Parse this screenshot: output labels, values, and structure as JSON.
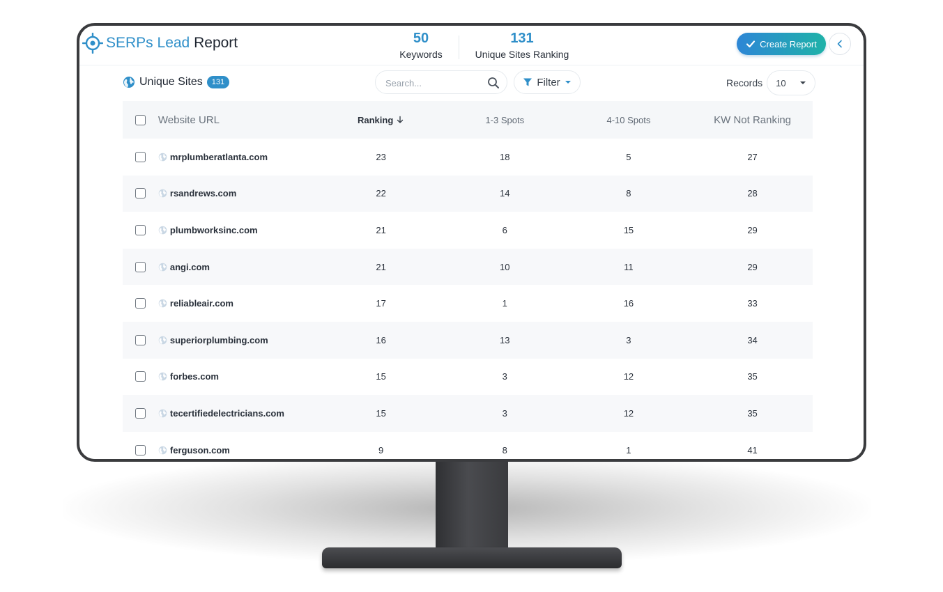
{
  "header": {
    "logo_text_accent": "SERPs Lead",
    "logo_text_main": "Report",
    "stats": [
      {
        "value": "50",
        "label": "Keywords"
      },
      {
        "value": "131",
        "label": "Unique Sites Ranking"
      }
    ],
    "create_report_label": "Create Report"
  },
  "toolbar": {
    "title": "Unique Sites",
    "count_badge": "131",
    "search_placeholder": "Search...",
    "filter_label": "Filter",
    "records_label": "Records",
    "records_value": "10"
  },
  "table": {
    "columns": [
      "Website URL",
      "Ranking",
      "1-3 Spots",
      "4-10 Spots",
      "KW Not Ranking"
    ],
    "rows": [
      {
        "url": "mrplumberatlanta.com",
        "ranking": "23",
        "top3": "18",
        "top10": "5",
        "not_ranking": "27"
      },
      {
        "url": "rsandrews.com",
        "ranking": "22",
        "top3": "14",
        "top10": "8",
        "not_ranking": "28"
      },
      {
        "url": "plumbworksinc.com",
        "ranking": "21",
        "top3": "6",
        "top10": "15",
        "not_ranking": "29"
      },
      {
        "url": "angi.com",
        "ranking": "21",
        "top3": "10",
        "top10": "11",
        "not_ranking": "29"
      },
      {
        "url": "reliableair.com",
        "ranking": "17",
        "top3": "1",
        "top10": "16",
        "not_ranking": "33"
      },
      {
        "url": "superiorplumbing.com",
        "ranking": "16",
        "top3": "13",
        "top10": "3",
        "not_ranking": "34"
      },
      {
        "url": "forbes.com",
        "ranking": "15",
        "top3": "3",
        "top10": "12",
        "not_ranking": "35"
      },
      {
        "url": "tecertifiedelectricians.com",
        "ranking": "15",
        "top3": "3",
        "top10": "12",
        "not_ranking": "35"
      },
      {
        "url": "ferguson.com",
        "ranking": "9",
        "top3": "8",
        "top10": "1",
        "not_ranking": "41"
      }
    ]
  },
  "colors": {
    "accent": "#2f8fc9",
    "button_gradient_start": "#2d86d6",
    "button_gradient_end": "#1fb2a8",
    "bezel": "#3a3b3e"
  },
  "icons": [
    "target-logo-icon",
    "check-icon",
    "chevron-left-icon",
    "globe-icon",
    "search-icon",
    "filter-icon",
    "caret-down-icon",
    "arrow-down-icon"
  ]
}
